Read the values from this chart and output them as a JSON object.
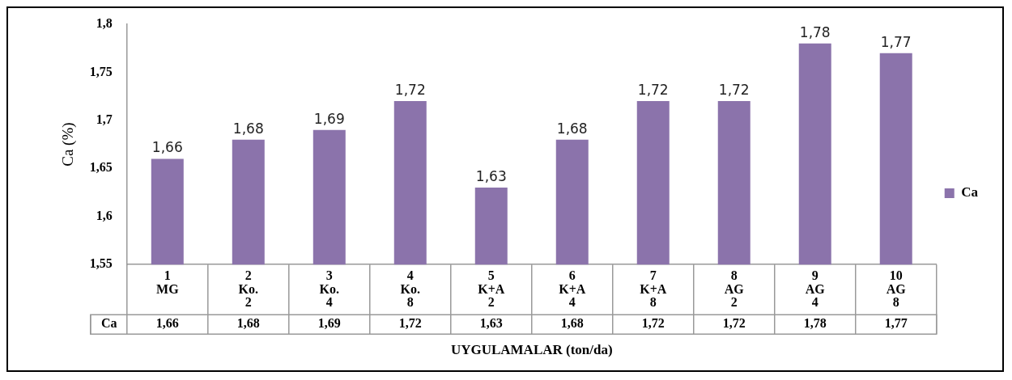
{
  "chart_data": {
    "type": "bar",
    "xlabel": "UYGULAMALAR (ton/da)",
    "ylabel": "Ca (%)",
    "categories": [
      "1\nMG",
      "2\nKo.\n2",
      "3\nKo.\n4",
      "4\nKo.\n8",
      "5\nK+A\n2",
      "6\nK+A\n4",
      "7\nK+A\n8",
      "8\nAG\n2",
      "9\nAG\n4",
      "10\nAG\n8"
    ],
    "series": [
      {
        "name": "Ca",
        "color": "#8b73ab",
        "values": [
          1.66,
          1.68,
          1.69,
          1.72,
          1.63,
          1.68,
          1.72,
          1.72,
          1.78,
          1.77
        ],
        "value_labels": [
          "1,66",
          "1,68",
          "1,69",
          "1,72",
          "1,63",
          "1,68",
          "1,72",
          "1,72",
          "1,78",
          "1,77"
        ]
      }
    ],
    "ylim": [
      1.55,
      1.8
    ],
    "yticks": [
      {
        "value": 1.55,
        "label": "1,55"
      },
      {
        "value": 1.6,
        "label": "1,6"
      },
      {
        "value": 1.65,
        "label": "1,65"
      },
      {
        "value": 1.7,
        "label": "1,7"
      },
      {
        "value": 1.75,
        "label": "1,75"
      },
      {
        "value": 1.8,
        "label": "1,8"
      }
    ],
    "grid": false,
    "legend": "right"
  }
}
